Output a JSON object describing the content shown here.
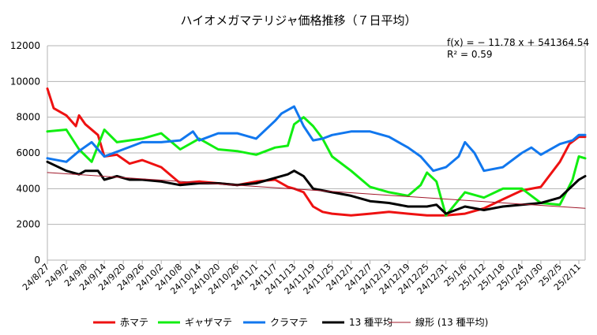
{
  "chart_data": {
    "type": "line",
    "title": "ハイオメガマテリジャ価格推移（７日平均）",
    "xlabel": "",
    "ylabel": "",
    "ylim": [
      0,
      12000
    ],
    "yticks": [
      0,
      2000,
      4000,
      6000,
      8000,
      10000,
      12000
    ],
    "xrange": [
      "24/8/27",
      "25/2/13"
    ],
    "xticks": [
      "24/8/27",
      "24/9/2",
      "24/9/8",
      "24/9/14",
      "24/9/20",
      "24/9/26",
      "24/10/2",
      "24/10/8",
      "24/10/14",
      "24/10/20",
      "24/10/26",
      "24/11/1",
      "24/11/7",
      "24/11/13",
      "24/11/19",
      "24/11/25",
      "24/12/1",
      "24/12/7",
      "24/12/13",
      "24/12/19",
      "24/12/25",
      "24/12/31",
      "25/1/6",
      "25/1/12",
      "25/1/18",
      "25/1/24",
      "25/1/30",
      "25/2/5",
      "25/2/11"
    ],
    "grid": true,
    "legend_position": "bottom",
    "annotations": [
      "f(x) = − 11.78 x + 541364.54",
      "R² = 0.59"
    ],
    "series": [
      {
        "name": "赤マテ",
        "color": "#ee1111",
        "x": [
          "24/8/27",
          "24/8/29",
          "24/9/2",
          "24/9/5",
          "24/9/6",
          "24/9/8",
          "24/9/12",
          "24/9/14",
          "24/9/18",
          "24/9/22",
          "24/9/26",
          "24/10/2",
          "24/10/8",
          "24/10/14",
          "24/10/20",
          "24/10/26",
          "24/11/1",
          "24/11/7",
          "24/11/11",
          "24/11/13",
          "24/11/16",
          "24/11/19",
          "24/11/22",
          "24/11/25",
          "24/12/1",
          "24/12/7",
          "24/12/13",
          "24/12/19",
          "24/12/25",
          "24/12/31",
          "25/1/6",
          "25/1/12",
          "25/1/18",
          "25/1/24",
          "25/1/30",
          "25/2/5",
          "25/2/8",
          "25/2/11",
          "25/2/13"
        ],
        "y": [
          9600,
          8500,
          8100,
          7500,
          8100,
          7600,
          7000,
          5800,
          5900,
          5400,
          5600,
          5200,
          4300,
          4400,
          4300,
          4200,
          4400,
          4500,
          4100,
          4000,
          3800,
          3000,
          2700,
          2600,
          2500,
          2600,
          2700,
          2600,
          2500,
          2500,
          2600,
          2900,
          3400,
          3900,
          4100,
          5500,
          6500,
          6900,
          6900
        ]
      },
      {
        "name": "ギャザマテ",
        "color": "#11ee11",
        "x": [
          "24/8/27",
          "24/9/2",
          "24/9/6",
          "24/9/10",
          "24/9/14",
          "24/9/18",
          "24/9/26",
          "24/10/2",
          "24/10/8",
          "24/10/14",
          "24/10/20",
          "24/10/26",
          "24/11/1",
          "24/11/7",
          "24/11/11",
          "24/11/13",
          "24/11/16",
          "24/11/19",
          "24/11/22",
          "24/11/25",
          "24/12/1",
          "24/12/7",
          "24/12/13",
          "24/12/19",
          "24/12/23",
          "24/12/25",
          "24/12/28",
          "24/12/31",
          "25/1/6",
          "25/1/12",
          "25/1/18",
          "25/1/24",
          "25/1/30",
          "25/2/5",
          "25/2/9",
          "25/2/11",
          "25/2/13"
        ],
        "y": [
          7200,
          7300,
          6200,
          5500,
          7300,
          6600,
          6800,
          7100,
          6200,
          6800,
          6200,
          6100,
          5900,
          6300,
          6400,
          7600,
          8000,
          7500,
          6800,
          5800,
          5000,
          4100,
          3800,
          3600,
          4200,
          4900,
          4400,
          2500,
          3800,
          3500,
          4000,
          4000,
          3200,
          3100,
          4500,
          5800,
          5700
        ]
      },
      {
        "name": "クラマテ",
        "color": "#1177ee",
        "x": [
          "24/8/27",
          "24/9/2",
          "24/9/6",
          "24/9/10",
          "24/9/14",
          "24/9/20",
          "24/9/26",
          "24/10/2",
          "24/10/8",
          "24/10/12",
          "24/10/14",
          "24/10/20",
          "24/10/26",
          "24/11/1",
          "24/11/7",
          "24/11/9",
          "24/11/13",
          "24/11/16",
          "24/11/19",
          "24/11/22",
          "24/11/25",
          "24/12/1",
          "24/12/7",
          "24/12/13",
          "24/12/19",
          "24/12/23",
          "24/12/27",
          "24/12/31",
          "25/1/4",
          "25/1/6",
          "25/1/9",
          "25/1/12",
          "25/1/18",
          "25/1/24",
          "25/1/27",
          "25/1/30",
          "25/2/5",
          "25/2/9",
          "25/2/11",
          "25/2/13"
        ],
        "y": [
          5700,
          5500,
          6100,
          6600,
          5800,
          6200,
          6600,
          6600,
          6700,
          7200,
          6700,
          7100,
          7100,
          6800,
          7800,
          8200,
          8600,
          7500,
          6700,
          6800,
          7000,
          7200,
          7200,
          6900,
          6300,
          5800,
          5000,
          5200,
          5800,
          6600,
          6000,
          5000,
          5200,
          6000,
          6300,
          5900,
          6500,
          6700,
          7000,
          7000
        ]
      },
      {
        "name": "13 種平均",
        "color": "#000000",
        "x": [
          "24/8/27",
          "24/9/2",
          "24/9/6",
          "24/9/8",
          "24/9/12",
          "24/9/14",
          "24/9/18",
          "24/9/22",
          "24/9/26",
          "24/10/2",
          "24/10/8",
          "24/10/14",
          "24/10/20",
          "24/10/26",
          "24/11/1",
          "24/11/7",
          "24/11/11",
          "24/11/13",
          "24/11/16",
          "24/11/19",
          "24/11/25",
          "24/12/1",
          "24/12/7",
          "24/12/13",
          "24/12/19",
          "24/12/25",
          "24/12/28",
          "24/12/31",
          "25/1/6",
          "25/1/12",
          "25/1/18",
          "25/1/24",
          "25/1/30",
          "25/2/5",
          "25/2/11",
          "25/2/13"
        ],
        "y": [
          5500,
          5000,
          4800,
          5000,
          5000,
          4500,
          4700,
          4500,
          4500,
          4400,
          4200,
          4300,
          4300,
          4200,
          4300,
          4600,
          4800,
          5000,
          4700,
          4000,
          3800,
          3600,
          3300,
          3200,
          3000,
          3000,
          3100,
          2600,
          3000,
          2800,
          3000,
          3100,
          3200,
          3500,
          4500,
          4700
        ]
      },
      {
        "name": "線形 (13 種平均)",
        "color": "#a0182a",
        "x": [
          "24/8/27",
          "25/2/13"
        ],
        "y": [
          4900,
          2900
        ]
      }
    ]
  }
}
